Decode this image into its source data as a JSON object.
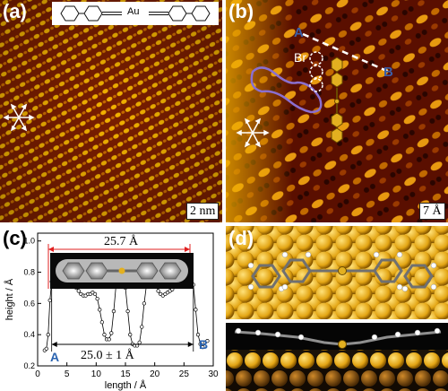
{
  "panel_a": {
    "label": "(a)",
    "molecule_center_atom": "Au",
    "scalebar": "2 nm",
    "icon": "crystal-direction-arrows-icon"
  },
  "panel_b": {
    "label": "(b)",
    "marker_A": "A",
    "marker_B": "B",
    "atom_label": "Br",
    "scalebar": "7 Å",
    "icon": "crystal-direction-arrows-icon",
    "colors": {
      "outline": "#8a6fd0",
      "dashed_line": "#ffffff",
      "marker": "#3b5fa8"
    }
  },
  "panel_c": {
    "label": "(c)",
    "top_dimension": "25.7 Å",
    "bottom_dimension": "25.0 ± 1 Å",
    "marker_A": "A",
    "marker_B": "B",
    "colors": {
      "dimension_arrows": "#e02020",
      "markers": "#2a63b0"
    }
  },
  "panel_d": {
    "label": "(d)",
    "colors": {
      "gold_atom": "#e3b020",
      "substrate_dark": "#8a5a1a",
      "carbon": "#8f8f8f"
    }
  },
  "chart_data": {
    "type": "line",
    "title": "",
    "xlabel": "length / Å",
    "ylabel": "height / Å",
    "xlim": [
      0,
      30
    ],
    "ylim": [
      0.2,
      1.05
    ],
    "xticks": [
      0,
      5,
      10,
      15,
      20,
      25,
      30
    ],
    "yticks": [
      0.2,
      0.4,
      0.6,
      0.8,
      1.0
    ],
    "xtick_labels": [
      "0",
      "5",
      "10",
      "15",
      "20",
      "25",
      "30"
    ],
    "ytick_labels": [
      "0.2",
      "0.4",
      "0.6",
      "0.8",
      "1.0"
    ],
    "series": [
      {
        "x": [
          1.2,
          1.5,
          1.8,
          2.1,
          2.4,
          2.7,
          3.0,
          3.4,
          3.8,
          4.2,
          4.6,
          5.0,
          5.4,
          5.8,
          6.2,
          6.6,
          7.0,
          7.4,
          7.8,
          8.2,
          8.6,
          9.0,
          9.4,
          9.8,
          10.2,
          10.6,
          11.0,
          11.4,
          11.8,
          12.2,
          12.6,
          13.0,
          13.4,
          13.8,
          14.2,
          14.6,
          15.0,
          15.4,
          15.8,
          16.2,
          16.6,
          17.0,
          17.4,
          17.8,
          18.2,
          18.6,
          19.0,
          19.4,
          19.8,
          20.2,
          20.6,
          21.0,
          21.4,
          21.8,
          22.2,
          22.6,
          23.0,
          23.4,
          23.8,
          24.2,
          24.6,
          25.0,
          25.4,
          25.8,
          26.2,
          26.6,
          27.0,
          27.4,
          27.8,
          28.2,
          28.6,
          29.0
        ],
        "y": [
          0.3,
          0.31,
          0.4,
          0.62,
          0.74,
          0.8,
          0.8,
          0.79,
          0.78,
          0.78,
          0.77,
          0.76,
          0.76,
          0.75,
          0.72,
          0.7,
          0.68,
          0.66,
          0.65,
          0.65,
          0.66,
          0.66,
          0.67,
          0.66,
          0.63,
          0.56,
          0.48,
          0.4,
          0.37,
          0.37,
          0.41,
          0.55,
          0.72,
          0.81,
          0.83,
          0.8,
          0.7,
          0.55,
          0.4,
          0.34,
          0.33,
          0.33,
          0.35,
          0.45,
          0.6,
          0.72,
          0.77,
          0.78,
          0.76,
          0.72,
          0.68,
          0.66,
          0.65,
          0.66,
          0.67,
          0.68,
          0.69,
          0.71,
          0.73,
          0.74,
          0.76,
          0.78,
          0.79,
          0.8,
          0.78,
          0.72,
          0.56,
          0.4,
          0.34,
          0.32,
          0.35,
          0.36
        ]
      }
    ]
  }
}
